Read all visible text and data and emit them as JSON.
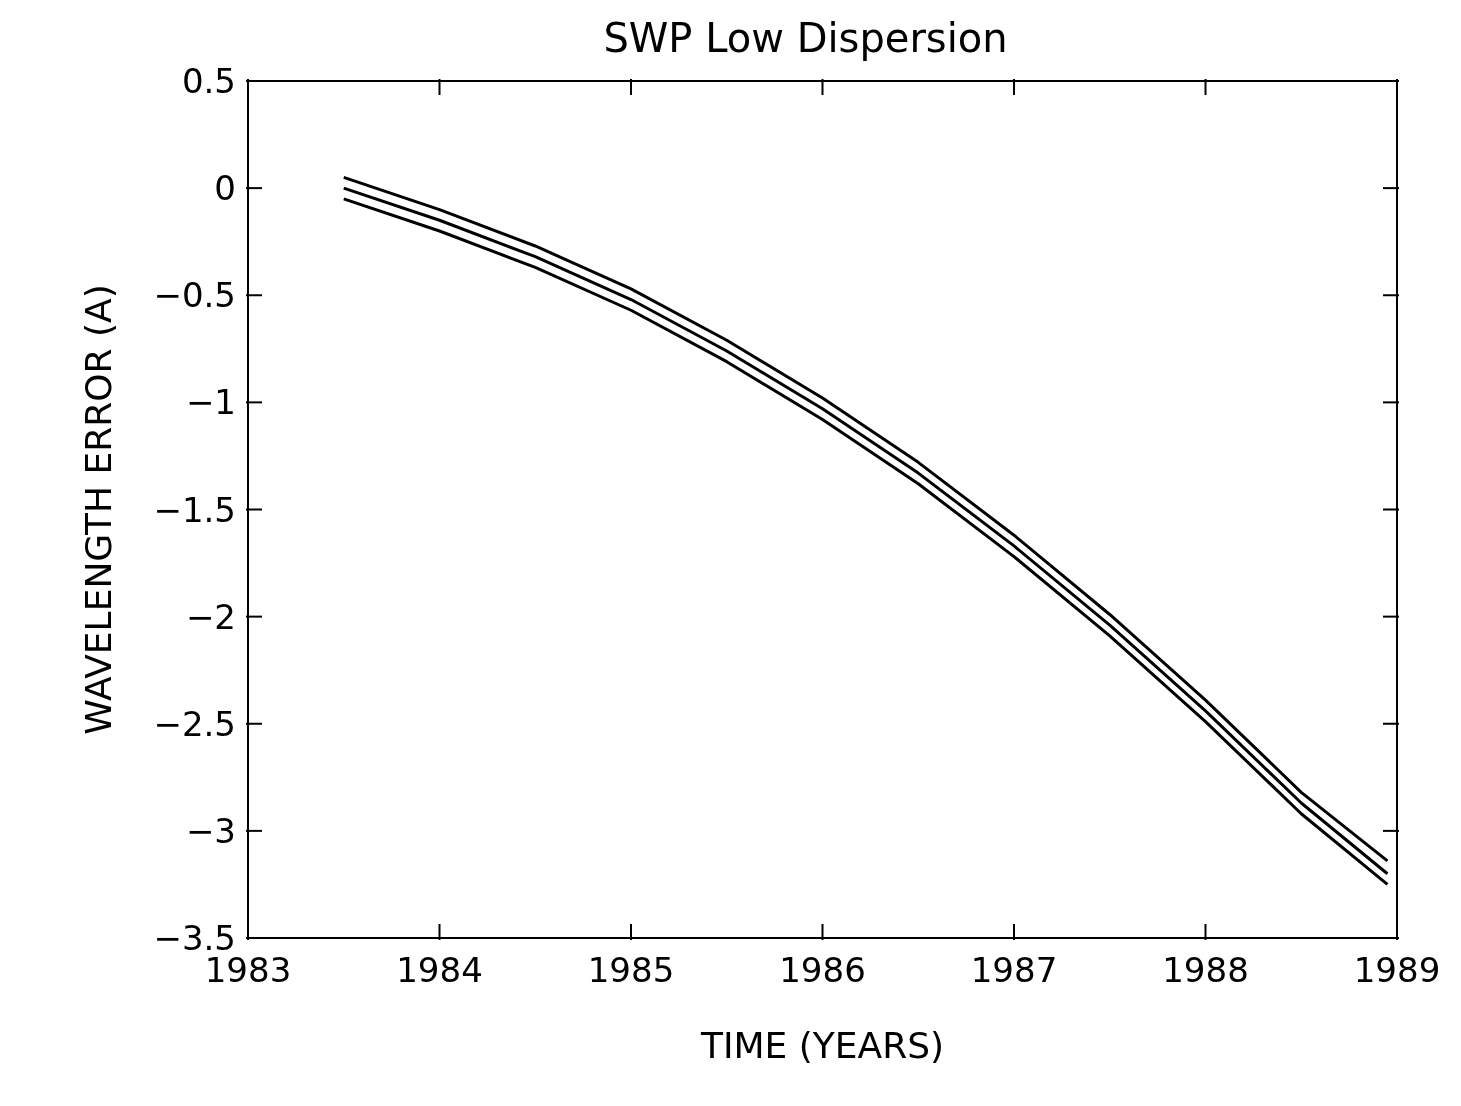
{
  "chart_data": {
    "type": "line",
    "title": "SWP Low Dispersion",
    "xlabel": "TIME (YEARS)",
    "ylabel": "WAVELENGTH ERROR (A)",
    "x": [
      1983.5,
      1984,
      1984.5,
      1985,
      1985.5,
      1986,
      1986.5,
      1987,
      1987.5,
      1988,
      1988.5,
      1988.95
    ],
    "series": [
      {
        "color": "#000000",
        "values": [
          0.05,
          -0.1,
          -0.27,
          -0.47,
          -0.71,
          -0.98,
          -1.28,
          -1.62,
          -1.99,
          -2.39,
          -2.82,
          -3.14
        ]
      },
      {
        "color": "#000000",
        "values": [
          0.0,
          -0.15,
          -0.32,
          -0.52,
          -0.76,
          -1.03,
          -1.33,
          -1.67,
          -2.04,
          -2.44,
          -2.87,
          -3.2
        ]
      },
      {
        "color": "#000000",
        "values": [
          -0.05,
          -0.2,
          -0.37,
          -0.57,
          -0.81,
          -1.08,
          -1.38,
          -1.72,
          -2.09,
          -2.49,
          -2.92,
          -3.25
        ]
      }
    ],
    "xlim": [
      1983,
      1989
    ],
    "xticks": [
      1983,
      1984,
      1985,
      1986,
      1987,
      1988,
      1989
    ],
    "ylim": [
      -3.5,
      0.5
    ],
    "yticks": [
      -3.5,
      -3,
      -2.5,
      -2,
      -1.5,
      -1,
      -0.5,
      0,
      0.5
    ],
    "grid": false,
    "legend": false,
    "marker": "none",
    "line_style": "solid"
  }
}
